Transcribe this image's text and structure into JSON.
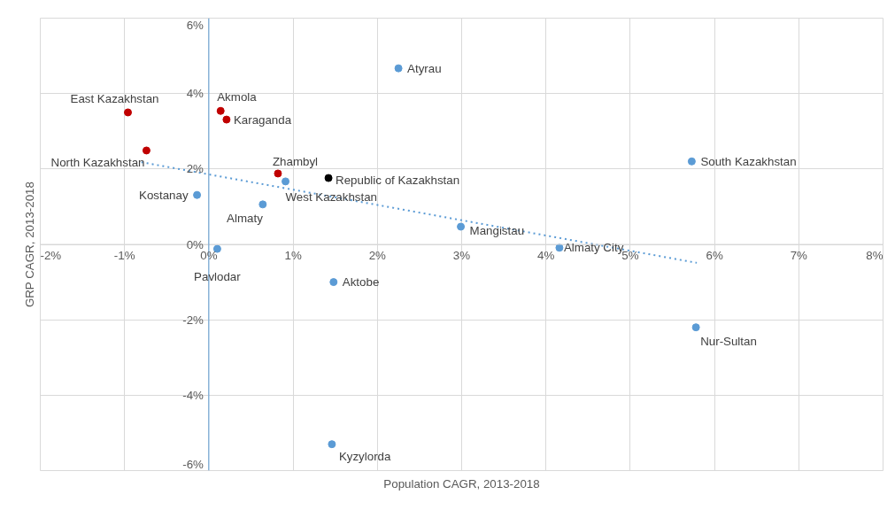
{
  "chart_data": {
    "type": "scatter",
    "xlabel": "Population CAGR, 2013-2018",
    "ylabel": "GRP CAGR, 2013-2018",
    "xlim": [
      -2,
      8
    ],
    "ylim": [
      -6,
      6
    ],
    "xticks": [
      {
        "value": -2,
        "label": "-2%"
      },
      {
        "value": -1,
        "label": "-1%"
      },
      {
        "value": 0,
        "label": "0%"
      },
      {
        "value": 1,
        "label": "1%"
      },
      {
        "value": 2,
        "label": "2%"
      },
      {
        "value": 3,
        "label": "3%"
      },
      {
        "value": 4,
        "label": "4%"
      },
      {
        "value": 5,
        "label": "5%"
      },
      {
        "value": 6,
        "label": "6%"
      },
      {
        "value": 7,
        "label": "7%"
      },
      {
        "value": 8,
        "label": "8%"
      }
    ],
    "yticks": [
      {
        "value": -6,
        "label": "-6%"
      },
      {
        "value": -4,
        "label": "-4%"
      },
      {
        "value": -2,
        "label": "-2%"
      },
      {
        "value": 0,
        "label": "0%"
      },
      {
        "value": 2,
        "label": "2%"
      },
      {
        "value": 4,
        "label": "4%"
      },
      {
        "value": 6,
        "label": "6%"
      }
    ],
    "grid": true,
    "marker": "circle",
    "series": [
      {
        "type": "scatter",
        "color": "#5b9bd5",
        "x": [
          2.25,
          0.91,
          5.73,
          -0.14,
          0.64,
          2.99,
          4.16,
          0.1,
          1.48,
          5.78,
          1.46
        ],
        "values": [
          4.67,
          1.67,
          2.2,
          1.31,
          1.06,
          0.47,
          -0.09,
          -0.12,
          -1.0,
          -2.2,
          -5.3
        ]
      },
      {
        "type": "scatter",
        "color": "#c00000",
        "x": [
          -0.96,
          0.14,
          0.21,
          -0.74,
          0.82
        ],
        "values": [
          3.5,
          3.54,
          3.31,
          2.49,
          1.88
        ]
      },
      {
        "type": "scatter",
        "color": "#000000",
        "x": [
          1.42
        ],
        "values": [
          1.76
        ]
      },
      {
        "type": "line",
        "color": "#5b9bd5",
        "line_style": "dotted",
        "marker": "none",
        "x": [
          -0.8,
          5.79
        ],
        "values": [
          2.18,
          -0.49
        ]
      }
    ],
    "annotations": [
      {
        "text": "Atyrau",
        "x": 2.25,
        "y": 4.67
      },
      {
        "text": "West Kazakhstan",
        "x": 0.91,
        "y": 1.67
      },
      {
        "text": "South Kazakhstan",
        "x": 5.73,
        "y": 2.2
      },
      {
        "text": "Kostanay",
        "x": -0.14,
        "y": 1.31
      },
      {
        "text": "Almaty",
        "x": 0.64,
        "y": 1.06
      },
      {
        "text": "Mangistau",
        "x": 2.99,
        "y": 0.47
      },
      {
        "text": "Almaty City",
        "x": 4.16,
        "y": -0.09
      },
      {
        "text": "Pavlodar",
        "x": 0.1,
        "y": -0.12
      },
      {
        "text": "Aktobe",
        "x": 1.48,
        "y": -1.0
      },
      {
        "text": "Nur-Sultan",
        "x": 5.78,
        "y": -2.2
      },
      {
        "text": "Kyzylorda",
        "x": 1.46,
        "y": -5.3
      },
      {
        "text": "East Kazakhstan",
        "x": -0.96,
        "y": 3.5
      },
      {
        "text": "Akmola",
        "x": 0.14,
        "y": 3.54
      },
      {
        "text": "Karaganda",
        "x": 0.21,
        "y": 3.31
      },
      {
        "text": "North Kazakhstan",
        "x": -0.74,
        "y": 2.49
      },
      {
        "text": "Zhambyl",
        "x": 0.82,
        "y": 1.88
      },
      {
        "text": "Republic of Kazakhstan",
        "x": 1.42,
        "y": 1.76
      }
    ]
  }
}
